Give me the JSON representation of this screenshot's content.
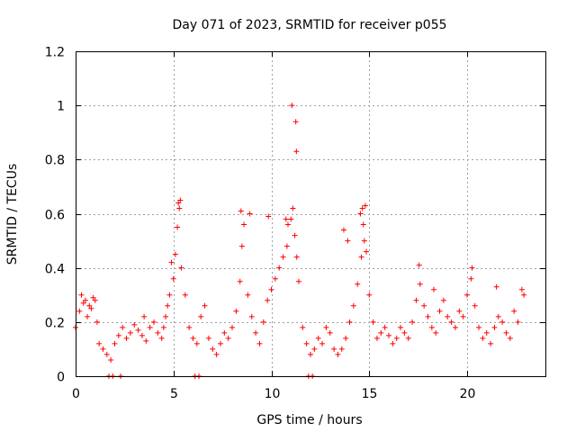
{
  "chart_data": {
    "type": "scatter",
    "title": "Day 071 of 2023, SRMTID for receiver p055",
    "xlabel": "GPS time / hours",
    "ylabel": "SRMTID / TECUs",
    "xlim": [
      0,
      24
    ],
    "ylim": [
      0,
      1.2
    ],
    "xticks": [
      0,
      5,
      10,
      15,
      20
    ],
    "xtick_labels": [
      "0",
      "5",
      "10",
      "15",
      "20"
    ],
    "yticks": [
      0,
      0.2,
      0.4,
      0.6,
      0.8,
      1,
      1.2
    ],
    "ytick_labels": [
      "0",
      "0.2",
      "0.4",
      "0.6",
      "0.8",
      "1",
      "1.2"
    ],
    "grid": true,
    "marker": "plus",
    "series": [
      {
        "name": "SRMTID",
        "color": "#ff0000",
        "x": [
          0.0,
          0.2,
          0.4,
          0.6,
          0.8,
          1.0,
          1.2,
          1.4,
          1.6,
          1.8,
          2.0,
          2.2,
          2.4,
          2.6,
          2.8,
          3.0,
          3.2,
          3.4,
          3.6,
          3.8,
          4.0,
          4.2,
          4.4,
          4.6,
          4.8,
          5.0,
          5.1,
          5.2,
          5.3,
          5.4,
          5.6,
          5.8,
          6.0,
          6.2,
          6.4,
          6.6,
          6.8,
          7.0,
          7.2,
          7.4,
          7.6,
          7.8,
          8.0,
          8.2,
          8.4,
          8.5,
          8.6,
          8.8,
          9.0,
          9.2,
          9.4,
          9.6,
          9.8,
          10.0,
          10.2,
          10.4,
          10.6,
          10.8,
          11.0,
          11.1,
          11.2,
          11.3,
          11.4,
          11.6,
          11.8,
          12.0,
          12.2,
          12.4,
          12.6,
          12.8,
          13.0,
          13.2,
          13.4,
          13.6,
          13.8,
          14.0,
          14.2,
          14.4,
          14.6,
          14.7,
          14.8,
          15.0,
          15.2,
          15.4,
          15.6,
          15.8,
          16.0,
          16.2,
          16.4,
          16.6,
          16.8,
          17.0,
          17.2,
          17.4,
          17.6,
          17.8,
          18.0,
          18.2,
          18.4,
          18.6,
          18.8,
          19.0,
          19.2,
          19.4,
          19.6,
          19.8,
          20.0,
          20.2,
          20.4,
          20.6,
          20.8,
          21.0,
          21.2,
          21.4,
          21.6,
          21.8,
          22.0,
          22.2,
          22.4,
          22.6,
          22.8,
          1.7,
          1.9,
          2.3,
          6.1,
          6.3,
          11.9,
          12.1,
          0.3,
          0.5,
          0.7,
          0.9,
          1.1,
          3.5,
          4.5,
          4.7,
          4.9,
          5.25,
          5.35,
          8.45,
          8.9,
          9.85,
          10.75,
          10.85,
          11.05,
          11.25,
          11.28,
          13.7,
          13.9,
          14.55,
          14.65,
          14.75,
          14.85,
          17.55,
          18.3,
          20.25,
          21.5,
          22.9
        ],
        "y": [
          0.18,
          0.24,
          0.27,
          0.22,
          0.25,
          0.28,
          0.12,
          0.1,
          0.08,
          0.06,
          0.12,
          0.15,
          0.18,
          0.14,
          0.16,
          0.19,
          0.17,
          0.15,
          0.13,
          0.18,
          0.2,
          0.16,
          0.14,
          0.22,
          0.3,
          0.36,
          0.45,
          0.55,
          0.62,
          0.4,
          0.3,
          0.18,
          0.14,
          0.12,
          0.22,
          0.26,
          0.14,
          0.1,
          0.08,
          0.12,
          0.16,
          0.14,
          0.18,
          0.24,
          0.35,
          0.48,
          0.56,
          0.3,
          0.22,
          0.16,
          0.12,
          0.2,
          0.28,
          0.32,
          0.36,
          0.4,
          0.44,
          0.48,
          0.58,
          0.62,
          0.52,
          0.44,
          0.35,
          0.18,
          0.12,
          0.08,
          0.1,
          0.14,
          0.12,
          0.18,
          0.16,
          0.1,
          0.08,
          0.1,
          0.14,
          0.2,
          0.26,
          0.34,
          0.44,
          0.56,
          0.63,
          0.3,
          0.2,
          0.14,
          0.16,
          0.18,
          0.15,
          0.12,
          0.14,
          0.18,
          0.16,
          0.14,
          0.2,
          0.28,
          0.34,
          0.26,
          0.22,
          0.18,
          0.16,
          0.24,
          0.28,
          0.22,
          0.2,
          0.18,
          0.24,
          0.22,
          0.3,
          0.36,
          0.26,
          0.18,
          0.14,
          0.16,
          0.12,
          0.18,
          0.22,
          0.2,
          0.16,
          0.14,
          0.24,
          0.2,
          0.32,
          0.0,
          0.0,
          0.0,
          0.0,
          0.0,
          0.0,
          0.0,
          0.3,
          0.28,
          0.26,
          0.29,
          0.2,
          0.22,
          0.18,
          0.26,
          0.42,
          0.64,
          0.65,
          0.61,
          0.6,
          0.59,
          0.58,
          0.56,
          1.0,
          0.94,
          0.83,
          0.54,
          0.5,
          0.6,
          0.62,
          0.5,
          0.46,
          0.41,
          0.32,
          0.4,
          0.33,
          0.3
        ]
      }
    ]
  }
}
